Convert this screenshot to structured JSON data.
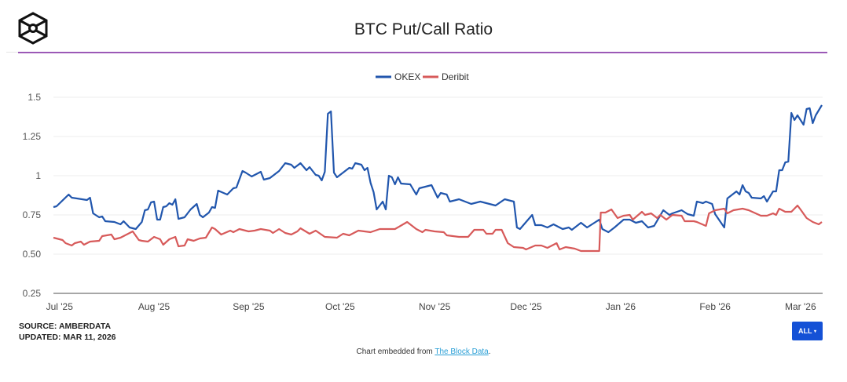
{
  "header": {
    "title": "BTC Put/Call Ratio"
  },
  "footer": {
    "source": "SOURCE: AMBERDATA",
    "updated": "UPDATED: MAR 11, 2026",
    "embed_prefix": "Chart embedded from ",
    "embed_link": "The Block Data",
    "embed_suffix": ".",
    "range_button": "ALL",
    "range_caret": "▾"
  },
  "colors": {
    "okex": "#2156ad",
    "deribit": "#d75a5a",
    "accent_rule": "#9b59b6",
    "button": "#1451d6"
  },
  "chart_data": {
    "type": "line",
    "title": "BTC Put/Call Ratio",
    "xlabel": "",
    "ylabel": "",
    "ylim": [
      0.25,
      1.5
    ],
    "xlim": [
      0,
      252
    ],
    "yticks": [
      0.25,
      0.5,
      0.75,
      1,
      1.25,
      1.5
    ],
    "ytick_labels": [
      "0.25",
      "0.50",
      "0.75",
      "1",
      "1.25",
      "1.5"
    ],
    "xticks": [
      2,
      33,
      64,
      94,
      125,
      155,
      186,
      217,
      245
    ],
    "xtick_labels": [
      "Jul '25",
      "Aug '25",
      "Sep '25",
      "Oct '25",
      "Nov '25",
      "Dec '25",
      "Jan '26",
      "Feb '26",
      "Mar '26"
    ],
    "grid": true,
    "legend_position": "top-center",
    "series": [
      {
        "name": "OKEX",
        "color": "#2156ad",
        "points": [
          [
            0,
            0.8
          ],
          [
            1,
            0.805
          ],
          [
            5,
            0.88
          ],
          [
            6,
            0.86
          ],
          [
            11,
            0.845
          ],
          [
            12,
            0.86
          ],
          [
            13,
            0.76
          ],
          [
            15,
            0.735
          ],
          [
            16,
            0.74
          ],
          [
            17,
            0.71
          ],
          [
            20,
            0.705
          ],
          [
            22,
            0.69
          ],
          [
            23,
            0.71
          ],
          [
            25,
            0.67
          ],
          [
            27,
            0.66
          ],
          [
            29,
            0.705
          ],
          [
            30,
            0.78
          ],
          [
            31,
            0.785
          ],
          [
            32,
            0.83
          ],
          [
            33,
            0.835
          ],
          [
            34,
            0.72
          ],
          [
            35,
            0.72
          ],
          [
            36,
            0.8
          ],
          [
            37,
            0.805
          ],
          [
            38,
            0.825
          ],
          [
            39,
            0.815
          ],
          [
            40,
            0.85
          ],
          [
            41,
            0.725
          ],
          [
            43,
            0.735
          ],
          [
            45,
            0.785
          ],
          [
            47,
            0.82
          ],
          [
            48,
            0.75
          ],
          [
            49,
            0.735
          ],
          [
            51,
            0.765
          ],
          [
            52,
            0.8
          ],
          [
            53,
            0.795
          ],
          [
            54,
            0.905
          ],
          [
            57,
            0.88
          ],
          [
            59,
            0.92
          ],
          [
            60,
            0.925
          ],
          [
            62,
            1.03
          ],
          [
            63,
            1.02
          ],
          [
            65,
            0.995
          ],
          [
            68,
            1.025
          ],
          [
            69,
            0.975
          ],
          [
            71,
            0.985
          ],
          [
            74,
            1.03
          ],
          [
            76,
            1.08
          ],
          [
            78,
            1.07
          ],
          [
            79,
            1.05
          ],
          [
            81,
            1.08
          ],
          [
            83,
            1.035
          ],
          [
            84,
            1.055
          ],
          [
            86,
            1.005
          ],
          [
            87,
            1.0
          ],
          [
            88,
            0.97
          ],
          [
            89,
            1.025
          ],
          [
            90,
            1.395
          ],
          [
            91,
            1.41
          ],
          [
            92,
            1.02
          ],
          [
            93,
            0.99
          ],
          [
            95,
            1.02
          ],
          [
            97,
            1.05
          ],
          [
            98,
            1.045
          ],
          [
            99,
            1.08
          ],
          [
            101,
            1.07
          ],
          [
            102,
            1.035
          ],
          [
            103,
            1.05
          ],
          [
            104,
            0.955
          ],
          [
            105,
            0.895
          ],
          [
            106,
            0.785
          ],
          [
            108,
            0.835
          ],
          [
            109,
            0.785
          ],
          [
            110,
            1.0
          ],
          [
            111,
            0.99
          ],
          [
            112,
            0.945
          ],
          [
            113,
            0.99
          ],
          [
            114,
            0.95
          ],
          [
            117,
            0.945
          ],
          [
            119,
            0.88
          ],
          [
            120,
            0.92
          ],
          [
            124,
            0.94
          ],
          [
            126,
            0.86
          ],
          [
            127,
            0.89
          ],
          [
            129,
            0.88
          ],
          [
            130,
            0.835
          ],
          [
            133,
            0.85
          ],
          [
            137,
            0.82
          ],
          [
            140,
            0.835
          ],
          [
            145,
            0.81
          ],
          [
            148,
            0.85
          ],
          [
            151,
            0.835
          ],
          [
            152,
            0.67
          ],
          [
            153,
            0.66
          ],
          [
            157,
            0.75
          ],
          [
            158,
            0.685
          ],
          [
            160,
            0.685
          ],
          [
            162,
            0.67
          ],
          [
            164,
            0.69
          ],
          [
            167,
            0.66
          ],
          [
            169,
            0.67
          ],
          [
            170,
            0.655
          ],
          [
            173,
            0.7
          ],
          [
            175,
            0.67
          ],
          [
            179,
            0.72
          ],
          [
            180,
            0.66
          ],
          [
            182,
            0.64
          ],
          [
            184,
            0.67
          ],
          [
            187,
            0.72
          ],
          [
            189,
            0.72
          ],
          [
            191,
            0.7
          ],
          [
            193,
            0.71
          ],
          [
            195,
            0.67
          ],
          [
            197,
            0.68
          ],
          [
            200,
            0.78
          ],
          [
            202,
            0.75
          ],
          [
            203,
            0.76
          ],
          [
            206,
            0.78
          ],
          [
            208,
            0.755
          ],
          [
            210,
            0.745
          ],
          [
            211,
            0.835
          ],
          [
            213,
            0.825
          ],
          [
            214,
            0.835
          ],
          [
            216,
            0.82
          ],
          [
            217,
            0.755
          ],
          [
            220,
            0.67
          ],
          [
            221,
            0.855
          ],
          [
            224,
            0.9
          ],
          [
            225,
            0.88
          ],
          [
            226,
            0.94
          ],
          [
            227,
            0.9
          ],
          [
            228,
            0.89
          ],
          [
            229,
            0.86
          ],
          [
            232,
            0.855
          ],
          [
            233,
            0.87
          ],
          [
            234,
            0.835
          ],
          [
            236,
            0.9
          ],
          [
            237,
            0.9
          ],
          [
            238,
            1.035
          ],
          [
            239,
            1.035
          ],
          [
            240,
            1.085
          ],
          [
            241,
            1.09
          ],
          [
            242,
            1.4
          ],
          [
            243,
            1.355
          ],
          [
            244,
            1.385
          ],
          [
            246,
            1.325
          ],
          [
            247,
            1.425
          ],
          [
            248,
            1.43
          ],
          [
            249,
            1.335
          ],
          [
            250,
            1.385
          ],
          [
            252,
            1.45
          ]
        ]
      },
      {
        "name": "Deribit",
        "color": "#d75a5a",
        "points": [
          [
            0,
            0.605
          ],
          [
            3,
            0.59
          ],
          [
            4,
            0.57
          ],
          [
            6,
            0.555
          ],
          [
            7,
            0.57
          ],
          [
            9,
            0.58
          ],
          [
            10,
            0.56
          ],
          [
            12,
            0.58
          ],
          [
            15,
            0.585
          ],
          [
            16,
            0.615
          ],
          [
            19,
            0.625
          ],
          [
            20,
            0.595
          ],
          [
            22,
            0.605
          ],
          [
            26,
            0.645
          ],
          [
            28,
            0.59
          ],
          [
            29,
            0.585
          ],
          [
            31,
            0.58
          ],
          [
            33,
            0.61
          ],
          [
            35,
            0.595
          ],
          [
            36,
            0.56
          ],
          [
            38,
            0.595
          ],
          [
            40,
            0.61
          ],
          [
            41,
            0.55
          ],
          [
            43,
            0.555
          ],
          [
            44,
            0.595
          ],
          [
            46,
            0.585
          ],
          [
            48,
            0.6
          ],
          [
            50,
            0.605
          ],
          [
            52,
            0.67
          ],
          [
            53,
            0.66
          ],
          [
            55,
            0.625
          ],
          [
            58,
            0.65
          ],
          [
            59,
            0.64
          ],
          [
            61,
            0.66
          ],
          [
            64,
            0.645
          ],
          [
            66,
            0.65
          ],
          [
            68,
            0.66
          ],
          [
            71,
            0.65
          ],
          [
            72,
            0.635
          ],
          [
            74,
            0.66
          ],
          [
            76,
            0.635
          ],
          [
            78,
            0.625
          ],
          [
            80,
            0.645
          ],
          [
            81,
            0.665
          ],
          [
            84,
            0.63
          ],
          [
            86,
            0.65
          ],
          [
            89,
            0.61
          ],
          [
            93,
            0.605
          ],
          [
            95,
            0.63
          ],
          [
            97,
            0.62
          ],
          [
            100,
            0.65
          ],
          [
            102,
            0.645
          ],
          [
            104,
            0.64
          ],
          [
            107,
            0.66
          ],
          [
            112,
            0.66
          ],
          [
            116,
            0.705
          ],
          [
            119,
            0.66
          ],
          [
            121,
            0.64
          ],
          [
            122,
            0.655
          ],
          [
            125,
            0.645
          ],
          [
            128,
            0.64
          ],
          [
            129,
            0.62
          ],
          [
            133,
            0.61
          ],
          [
            136,
            0.61
          ],
          [
            138,
            0.655
          ],
          [
            141,
            0.655
          ],
          [
            142,
            0.63
          ],
          [
            144,
            0.63
          ],
          [
            145,
            0.655
          ],
          [
            147,
            0.655
          ],
          [
            149,
            0.57
          ],
          [
            151,
            0.545
          ],
          [
            154,
            0.54
          ],
          [
            155,
            0.53
          ],
          [
            158,
            0.555
          ],
          [
            160,
            0.555
          ],
          [
            162,
            0.54
          ],
          [
            164,
            0.56
          ],
          [
            165,
            0.57
          ],
          [
            166,
            0.53
          ],
          [
            168,
            0.545
          ],
          [
            171,
            0.535
          ],
          [
            173,
            0.52
          ],
          [
            179,
            0.52
          ],
          [
            179.5,
            0.765
          ],
          [
            181,
            0.765
          ],
          [
            183,
            0.785
          ],
          [
            185,
            0.73
          ],
          [
            187,
            0.745
          ],
          [
            189,
            0.75
          ],
          [
            190,
            0.72
          ],
          [
            193,
            0.77
          ],
          [
            194,
            0.75
          ],
          [
            196,
            0.76
          ],
          [
            198,
            0.73
          ],
          [
            199,
            0.75
          ],
          [
            201,
            0.72
          ],
          [
            203,
            0.75
          ],
          [
            206,
            0.745
          ],
          [
            207,
            0.71
          ],
          [
            210,
            0.71
          ],
          [
            211,
            0.705
          ],
          [
            214,
            0.68
          ],
          [
            215,
            0.76
          ],
          [
            217,
            0.78
          ],
          [
            220,
            0.79
          ],
          [
            221,
            0.76
          ],
          [
            223,
            0.78
          ],
          [
            226,
            0.79
          ],
          [
            228,
            0.78
          ],
          [
            232,
            0.745
          ],
          [
            234,
            0.745
          ],
          [
            236,
            0.76
          ],
          [
            237,
            0.75
          ],
          [
            238,
            0.79
          ],
          [
            240,
            0.77
          ],
          [
            242,
            0.77
          ],
          [
            244,
            0.81
          ],
          [
            245,
            0.785
          ],
          [
            247,
            0.73
          ],
          [
            249,
            0.705
          ],
          [
            251,
            0.69
          ],
          [
            252,
            0.705
          ]
        ]
      }
    ]
  }
}
